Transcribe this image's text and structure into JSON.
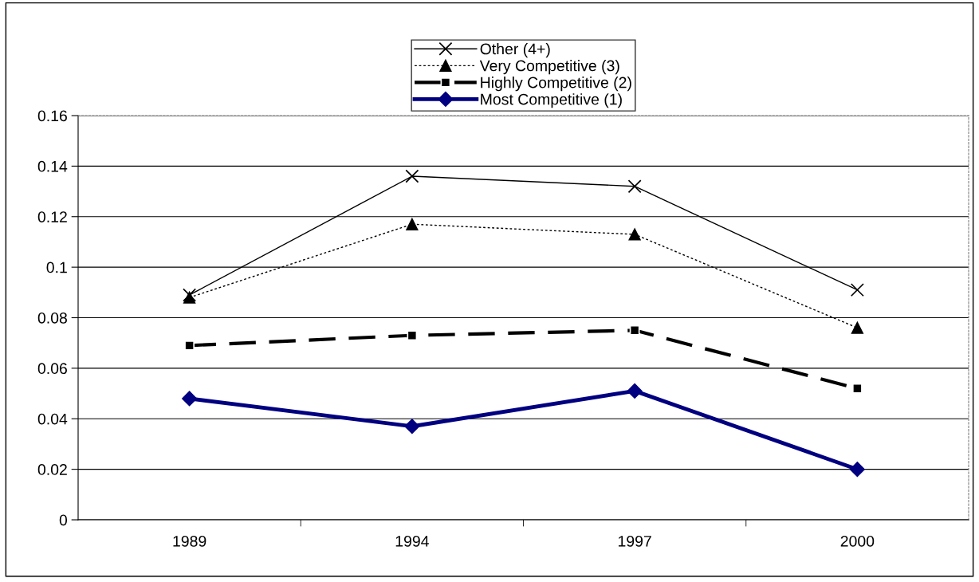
{
  "chart_data": {
    "type": "line",
    "categories": [
      "1989",
      "1994",
      "1997",
      "2000"
    ],
    "series": [
      {
        "name": "Other (4+)",
        "color": "#000000",
        "marker": "cross",
        "line_style": "solid",
        "values": [
          0.089,
          0.136,
          0.132,
          0.091
        ]
      },
      {
        "name": "Very Competitive (3)",
        "color": "#000000",
        "marker": "triangle",
        "line_style": "dotted",
        "values": [
          0.088,
          0.117,
          0.113,
          0.076
        ]
      },
      {
        "name": "Highly Competitive (2)",
        "color": "#000000",
        "marker": "square",
        "line_style": "dashed",
        "values": [
          0.069,
          0.073,
          0.075,
          0.052
        ]
      },
      {
        "name": "Most Competitive (1)",
        "color": "#000080",
        "marker": "diamond",
        "line_style": "solid",
        "values": [
          0.048,
          0.037,
          0.051,
          0.02
        ]
      }
    ],
    "ylim": [
      0,
      0.16
    ],
    "yticks": [
      0,
      {
        "value": 0.02,
        "label": "0.02"
      },
      {
        "value": 0.04,
        "label": "0.04"
      },
      {
        "value": 0.06,
        "label": "0.06"
      },
      {
        "value": 0.08,
        "label": "0.08"
      },
      {
        "value": 0.1,
        "label": "0.1"
      },
      {
        "value": 0.12,
        "label": "0.12"
      },
      {
        "value": 0.14,
        "label": "0.14"
      },
      {
        "value": 0.16,
        "label": "0.16"
      }
    ],
    "grid": "y",
    "legend": "top"
  }
}
